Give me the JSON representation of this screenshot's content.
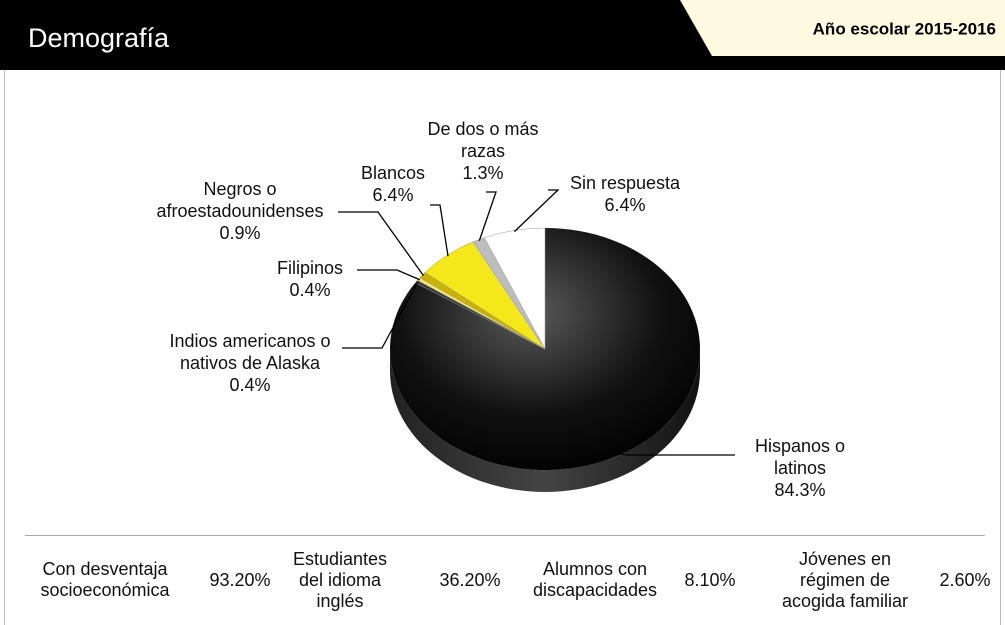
{
  "header": {
    "title": "Demografía",
    "year": "Año escolar 2015-2016"
  },
  "chart_data": {
    "type": "pie",
    "categories": [
      "Hispanos o latinos",
      "Indios americanos o nativos de Alaska",
      "Filipinos",
      "Negros o afroestadounidenses",
      "Blancos",
      "De dos o más razas",
      "Sin respuesta"
    ],
    "values": [
      84.3,
      0.4,
      0.4,
      0.9,
      6.4,
      1.3,
      6.4
    ],
    "value_labels": [
      "84.3%",
      "0.4%",
      "0.4%",
      "0.9%",
      "6.4%",
      "1.3%",
      "6.4%"
    ],
    "colors": [
      "#050505",
      "#3a3a3a",
      "#f3e77a",
      "#c9b200",
      "#f4e81a",
      "#bdbdbd",
      "#ffffff"
    ]
  },
  "stats": [
    {
      "label": "Con desventaja socioeconómica",
      "value": "93.20%"
    },
    {
      "label": "Estudiantes del idioma inglés",
      "value": "36.20%"
    },
    {
      "label": "Alumnos con discapacidades",
      "value": "8.10%"
    },
    {
      "label": "Jóvenes en régimen de acogida familiar",
      "value": "2.60%"
    }
  ]
}
